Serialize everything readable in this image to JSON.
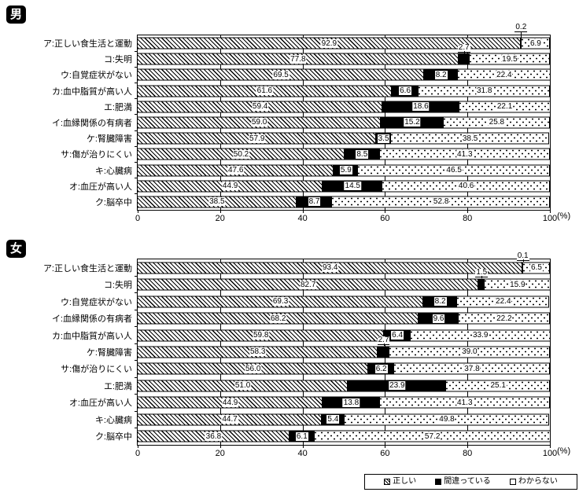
{
  "chart_data": [
    {
      "type": "bar",
      "stacked": true,
      "orientation": "horizontal",
      "title": "男",
      "categories": [
        "ア:正しい食生活と運動",
        "コ:失明",
        "ウ:自覚症状がない",
        "カ:血中脂質が高い人",
        "エ:肥満",
        "イ:血縁関係の有病者",
        "ケ:腎臓障害",
        "サ:傷が治りにくい",
        "キ:心臓病",
        "オ:血圧が高い人",
        "ク:脳卒中"
      ],
      "series": [
        {
          "name": "正しい",
          "values": [
            92.9,
            77.8,
            69.5,
            61.6,
            59.4,
            59.0,
            57.9,
            50.2,
            47.6,
            44.9,
            38.5
          ]
        },
        {
          "name": "間違っている",
          "values": [
            0.2,
            2.7,
            8.2,
            6.6,
            18.6,
            15.2,
            3.5,
            8.5,
            5.9,
            14.5,
            8.7
          ]
        },
        {
          "name": "わからない",
          "values": [
            6.9,
            19.5,
            22.4,
            31.8,
            22.1,
            25.8,
            38.5,
            41.3,
            46.5,
            40.6,
            52.8
          ]
        }
      ],
      "xlim": [
        0,
        100
      ],
      "xticks": [
        0,
        20,
        40,
        60,
        80,
        100
      ],
      "unit": "(%)",
      "grid": true,
      "callout_rows": [
        0,
        1
      ]
    },
    {
      "type": "bar",
      "stacked": true,
      "orientation": "horizontal",
      "title": "女",
      "categories": [
        "ア:正しい食生活と運動",
        "コ:失明",
        "ウ:自覚症状がない",
        "イ:血縁関係の有病者",
        "カ:血中脂質が高い人",
        "ケ:腎臓障害",
        "サ:傷が治りにくい",
        "エ:肥満",
        "オ:血圧が高い人",
        "キ:心臓病",
        "ク:脳卒中"
      ],
      "series": [
        {
          "name": "正しい",
          "values": [
            93.4,
            82.7,
            69.3,
            68.2,
            59.8,
            58.3,
            56.0,
            51.0,
            44.9,
            44.7,
            36.8
          ]
        },
        {
          "name": "間違っている",
          "values": [
            0.1,
            1.5,
            8.2,
            9.6,
            6.4,
            2.7,
            6.2,
            23.9,
            13.8,
            5.4,
            6.1
          ]
        },
        {
          "name": "わからない",
          "values": [
            6.5,
            15.9,
            22.4,
            22.2,
            33.9,
            39.0,
            37.8,
            25.1,
            41.3,
            49.8,
            57.2
          ]
        }
      ],
      "xlim": [
        0,
        100
      ],
      "xticks": [
        0,
        20,
        40,
        60,
        80,
        100
      ],
      "unit": "(%)",
      "grid": true,
      "callout_rows": [
        0,
        1,
        5
      ]
    }
  ],
  "legend": {
    "position": "bottom-right",
    "items": [
      {
        "label": "正しい",
        "pattern": "hatch"
      },
      {
        "label": "間違っている",
        "pattern": "solid-black"
      },
      {
        "label": "わからない",
        "pattern": "dots"
      }
    ]
  },
  "colors": {
    "foreground": "#000000",
    "background": "#ffffff",
    "wrong_segment": "#000000"
  }
}
